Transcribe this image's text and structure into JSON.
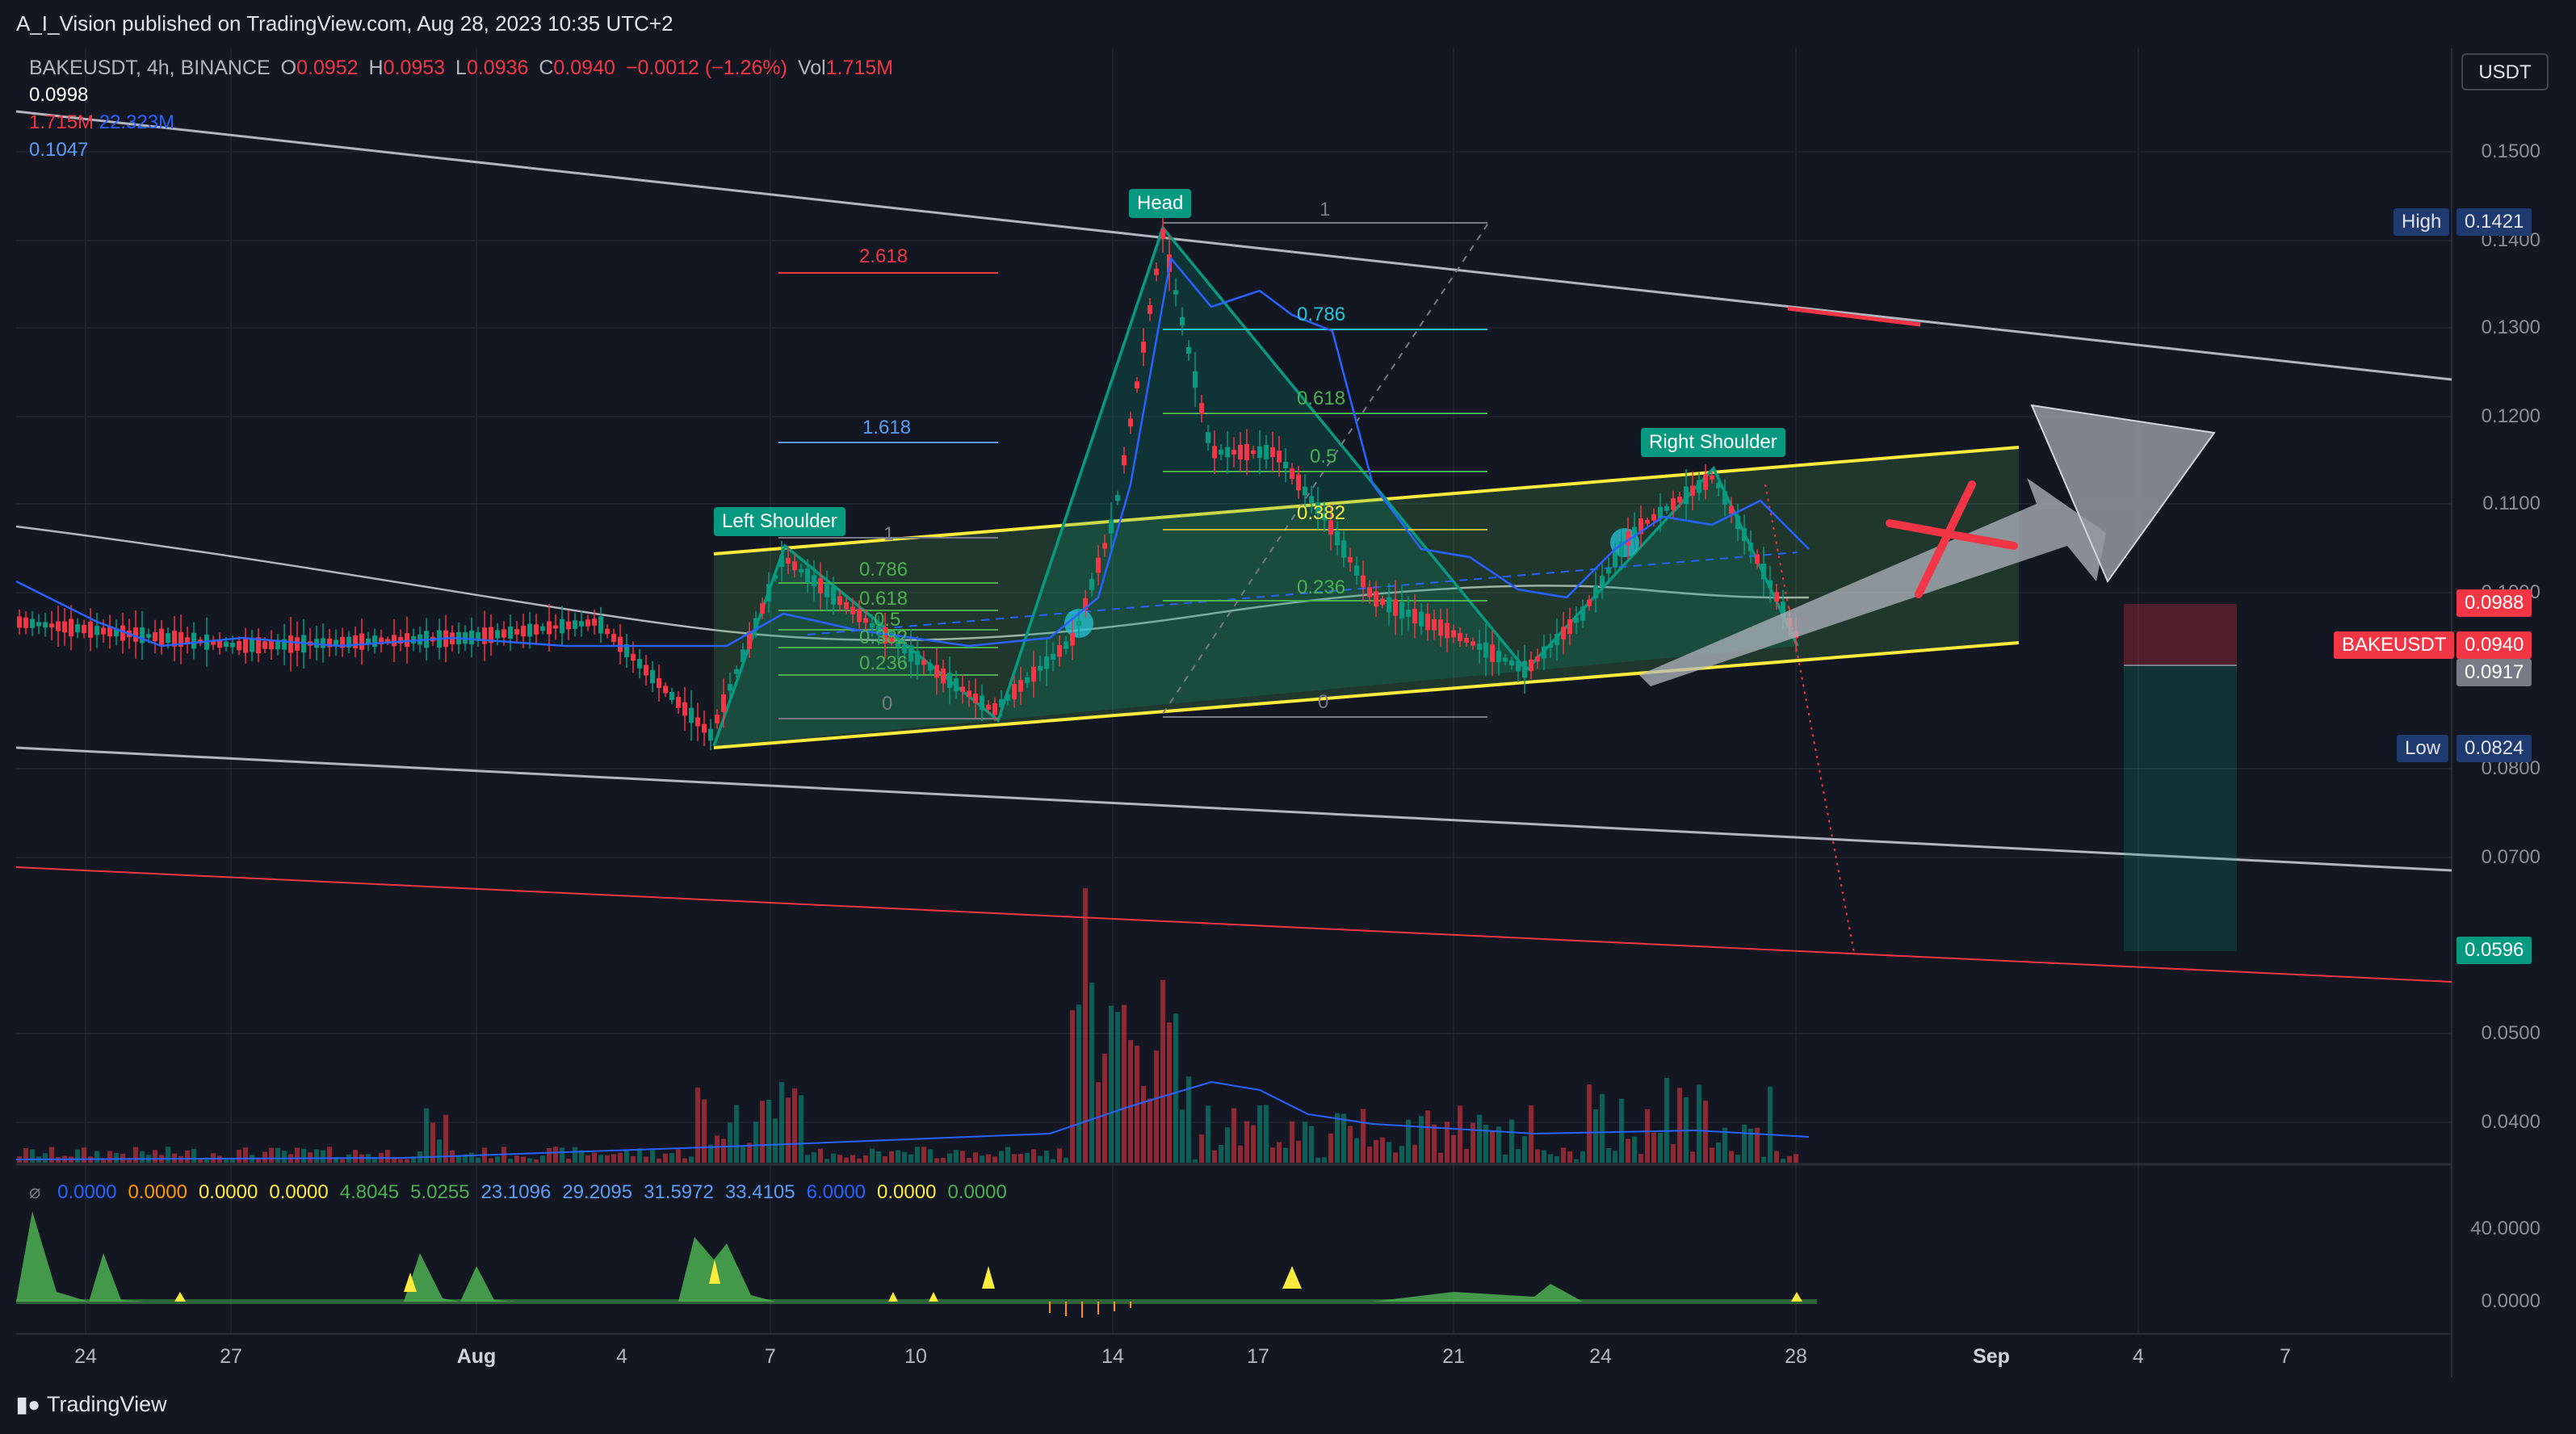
{
  "header": {
    "published_text": "A_I_Vision published on TradingView.com, Aug 28, 2023 10:35 UTC+2"
  },
  "legend": {
    "symbol": "BAKEUSDT, 4h, BINANCE",
    "open_label": "O",
    "open": "0.0952",
    "high_label": "H",
    "high": "0.0953",
    "low_label": "L",
    "low": "0.0936",
    "close_label": "C",
    "close": "0.0940",
    "change": "−0.0012 (−1.26%)",
    "vol_label": "Vol",
    "vol": "1.715M",
    "row2": "0.0998",
    "row3_a": "1.715M",
    "row3_b": "22.323M",
    "row4": "0.1047"
  },
  "oscillator_legend": {
    "icon": "⌀",
    "values": [
      {
        "text": "0.0000",
        "color": "#2962ff"
      },
      {
        "text": "0.0000",
        "color": "#ff9800"
      },
      {
        "text": "0.0000",
        "color": "#ffeb3b"
      },
      {
        "text": "0.0000",
        "color": "#ffeb3b"
      },
      {
        "text": "4.8045",
        "color": "#4caf50"
      },
      {
        "text": "5.0255",
        "color": "#4caf50"
      },
      {
        "text": "23.1096",
        "color": "#5b9cf6"
      },
      {
        "text": "29.2095",
        "color": "#5b9cf6"
      },
      {
        "text": "31.5972",
        "color": "#5b9cf6"
      },
      {
        "text": "33.4105",
        "color": "#5b9cf6"
      },
      {
        "text": "6.0000",
        "color": "#2962ff"
      },
      {
        "text": "0.0000",
        "color": "#ffeb3b"
      },
      {
        "text": "0.0000",
        "color": "#4caf50"
      }
    ]
  },
  "price_axis": {
    "currency_button": "USDT",
    "ticks": [
      "0.1500",
      "0.1400",
      "0.1300",
      "0.1200",
      "0.1100",
      "0.1000",
      "0.0800",
      "0.0700",
      "0.0500",
      "0.0400"
    ],
    "osc_ticks": [
      "40.0000",
      "0.0000"
    ],
    "tags": {
      "high_label": "High",
      "high_value": "0.1421",
      "low_label": "Low",
      "low_value": "0.0824",
      "target_top": "0.0988",
      "symbol": "BAKEUSDT",
      "symbol_price": "0.0940",
      "stop": "0.0917",
      "target_bottom": "0.0596"
    }
  },
  "time_axis": {
    "labels": [
      "24",
      "27",
      "Aug",
      "4",
      "7",
      "10",
      "14",
      "17",
      "21",
      "24",
      "28",
      "Sep",
      "4",
      "7"
    ]
  },
  "drawings": {
    "pattern_labels": {
      "left_shoulder": "Left Shoulder",
      "head": "Head",
      "right_shoulder": "Right Shoulder"
    },
    "fib_left": [
      "1",
      "0.786",
      "0.618",
      "0.5",
      "0.382",
      "0.236",
      "0"
    ],
    "fib_ext": [
      "2.618",
      "1.618"
    ],
    "fib_head": [
      "1",
      "0.786",
      "0.618",
      "0.5",
      "0.382",
      "0.236",
      "0"
    ]
  },
  "colors": {
    "up": "#089981",
    "down": "#f23645",
    "bg": "#131722",
    "channel": "#ffeb3b",
    "pattern": "#089981",
    "accent_blue": "#2962ff"
  },
  "footer": {
    "brand": "TradingView",
    "logo_icon": "tradingview-logo-icon"
  }
}
